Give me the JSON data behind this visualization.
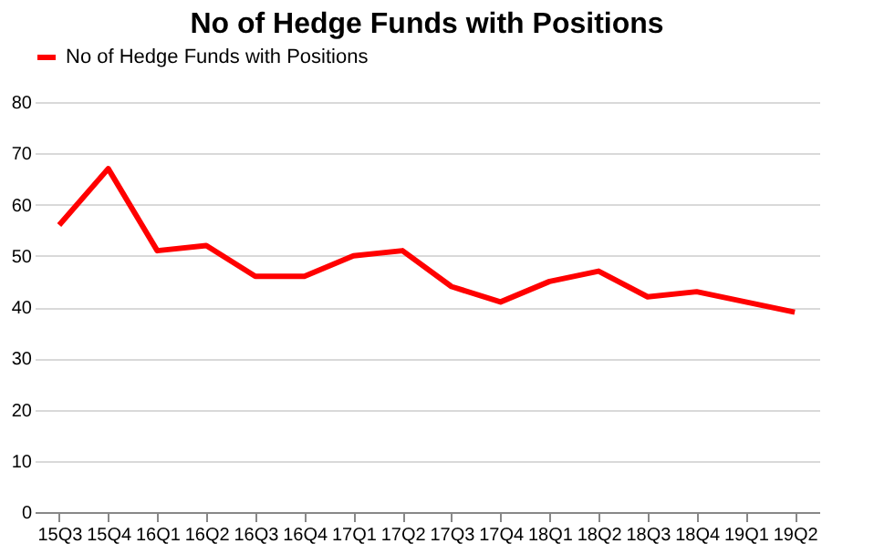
{
  "chart_data": {
    "type": "line",
    "title": "No of Hedge Funds with Positions",
    "categories": [
      "15Q3",
      "15Q4",
      "16Q1",
      "16Q2",
      "16Q3",
      "16Q4",
      "17Q1",
      "17Q2",
      "17Q3",
      "17Q4",
      "18Q1",
      "18Q2",
      "18Q3",
      "18Q4",
      "19Q1",
      "19Q2"
    ],
    "series": [
      {
        "name": "No of Hedge Funds with Positions",
        "color": "#ff0000",
        "values": [
          56,
          67,
          51,
          52,
          46,
          46,
          50,
          51,
          44,
          41,
          45,
          47,
          42,
          43,
          41,
          39
        ]
      }
    ],
    "ylim": [
      0,
      80
    ],
    "yticks": [
      0,
      10,
      20,
      30,
      40,
      50,
      60,
      70,
      80
    ],
    "grid": "y",
    "legend": "top",
    "marker": "none",
    "line_style": "solid"
  }
}
